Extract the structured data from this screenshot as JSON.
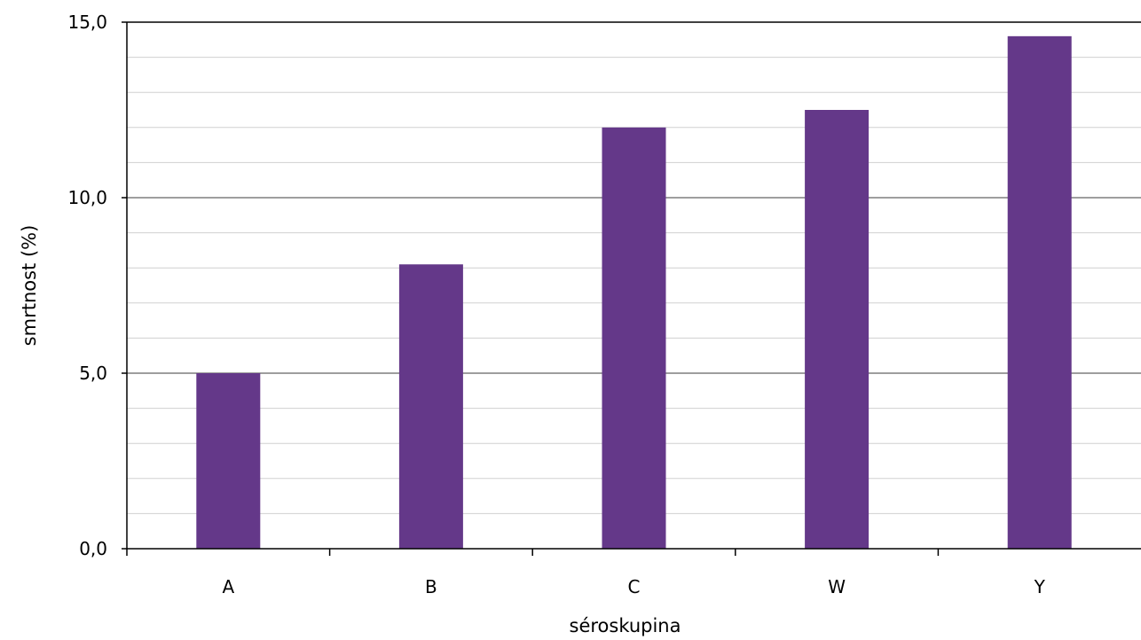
{
  "chart_data": {
    "type": "bar",
    "title": "",
    "categories": [
      "A",
      "B",
      "C",
      "W",
      "Y"
    ],
    "values": [
      5.0,
      8.1,
      12.0,
      12.5,
      14.6
    ],
    "xlabel": "séroskupina",
    "ylabel": "smrtnost (%)",
    "ylim": [
      0,
      15
    ],
    "y_major_ticks": [
      0,
      5,
      10,
      15
    ],
    "y_tick_labels": [
      "0,0",
      "5,0",
      "10,0",
      "15,0"
    ],
    "y_minor_step": 1,
    "grid": true,
    "legend": "none",
    "colors": {
      "bar": "#643889",
      "major_grid": "#7f7f7f",
      "minor_grid": "#d0d0d0",
      "axis": "#000000"
    }
  }
}
